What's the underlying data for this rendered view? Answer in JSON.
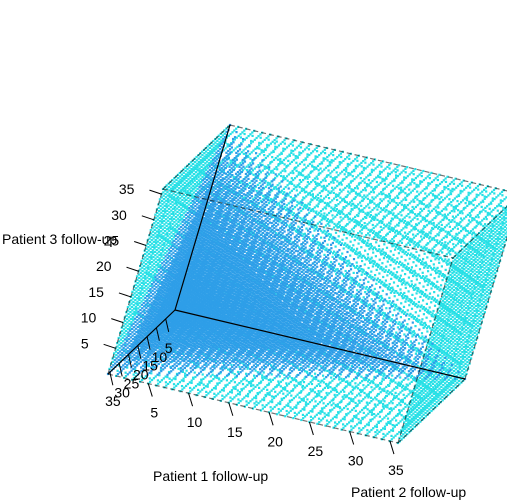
{
  "chart_data": {
    "type": "scatter",
    "projection": "3d",
    "xlabel": "Patient 1 follow-up",
    "ylabel": "Patient 2 follow-up",
    "zlabel": "Patient 3 follow-up",
    "xlim": [
      0,
      36
    ],
    "ylim": [
      0,
      36
    ],
    "zlim": [
      0,
      36
    ],
    "x_ticks": [
      5,
      10,
      15,
      20,
      25,
      30,
      35
    ],
    "y_ticks": [
      5,
      10,
      15,
      20,
      25,
      30,
      35
    ],
    "z_ticks": [
      5,
      10,
      15,
      20,
      25,
      30,
      35
    ],
    "grid_step": 1,
    "box": true,
    "series": [
      {
        "region": "all grid points",
        "color": "#26e0e6"
      },
      {
        "region": "x + y + z <= 36",
        "color": "#2e9ee8"
      }
    ]
  }
}
